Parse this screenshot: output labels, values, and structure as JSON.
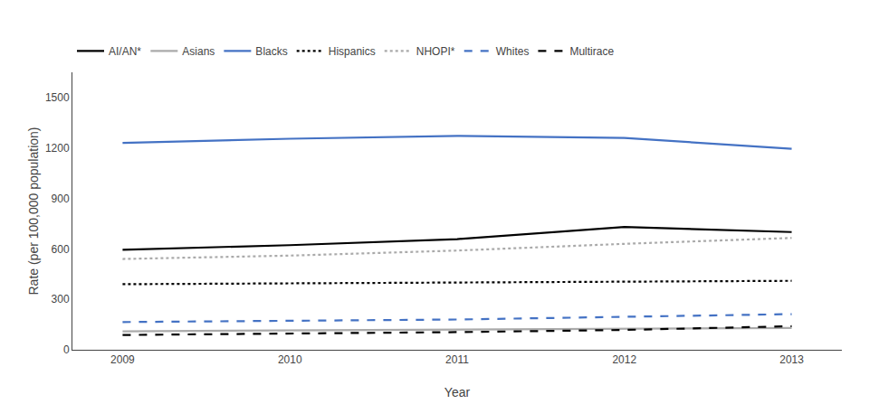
{
  "chart_data": {
    "type": "line",
    "x": [
      2009,
      2010,
      2011,
      2012,
      2013
    ],
    "series": [
      {
        "name": "AI/AN*",
        "color": "#000000",
        "line_style": "solid",
        "values": [
          595,
          622,
          658,
          730,
          700
        ]
      },
      {
        "name": "Asians",
        "color": "#aaaaaa",
        "line_style": "solid",
        "values": [
          110,
          115,
          120,
          125,
          130
        ]
      },
      {
        "name": "Blacks",
        "color": "#4472c4",
        "line_style": "solid",
        "values": [
          1230,
          1255,
          1272,
          1260,
          1195
        ]
      },
      {
        "name": "Hispanics",
        "color": "#000000",
        "line_style": "dotted",
        "values": [
          390,
          395,
          400,
          405,
          410
        ]
      },
      {
        "name": "NHOPI*",
        "color": "#aaaaaa",
        "line_style": "dotted",
        "values": [
          540,
          560,
          590,
          630,
          665
        ]
      },
      {
        "name": "Whites",
        "color": "#4472c4",
        "line_style": "dashed",
        "values": [
          165,
          172,
          180,
          196,
          212
        ]
      },
      {
        "name": "Multirace",
        "color": "#000000",
        "line_style": "dashed",
        "values": [
          88,
          95,
          105,
          118,
          140
        ]
      }
    ],
    "xlabel": "Year",
    "ylabel": "Rate (per 100,000 population)",
    "xlim": [
      2008.7,
      2013.3
    ],
    "xticks": [
      2009,
      2010,
      2011,
      2012,
      2013
    ],
    "ylim": [
      0,
      1650
    ],
    "yticks": [
      0,
      300,
      600,
      900,
      1200,
      1500
    ],
    "grid": false,
    "legend": "top"
  }
}
